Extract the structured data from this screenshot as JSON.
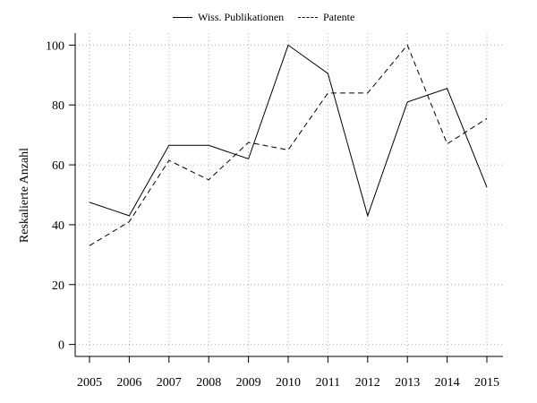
{
  "chart_data": {
    "type": "line",
    "title": "",
    "xlabel": "",
    "ylabel": "Reskalierte Anzahl",
    "x": [
      "2005",
      "2006",
      "2007",
      "2008",
      "2009",
      "2010",
      "2011",
      "2012",
      "2013",
      "2014",
      "2015"
    ],
    "ylim": [
      -4,
      104
    ],
    "yticks": [
      0,
      20,
      40,
      60,
      80,
      100
    ],
    "grid": true,
    "legend_position": "top-center",
    "series": [
      {
        "name": "Wiss. Publikationen",
        "style": "solid",
        "values": [
          47.5,
          43,
          66.5,
          66.5,
          62,
          100,
          90.5,
          43,
          81,
          85.5,
          52.5
        ]
      },
      {
        "name": "Patente",
        "style": "dashed",
        "values": [
          33,
          41,
          61.5,
          55,
          67.5,
          65,
          84,
          84,
          100,
          67,
          75.5
        ]
      }
    ]
  }
}
